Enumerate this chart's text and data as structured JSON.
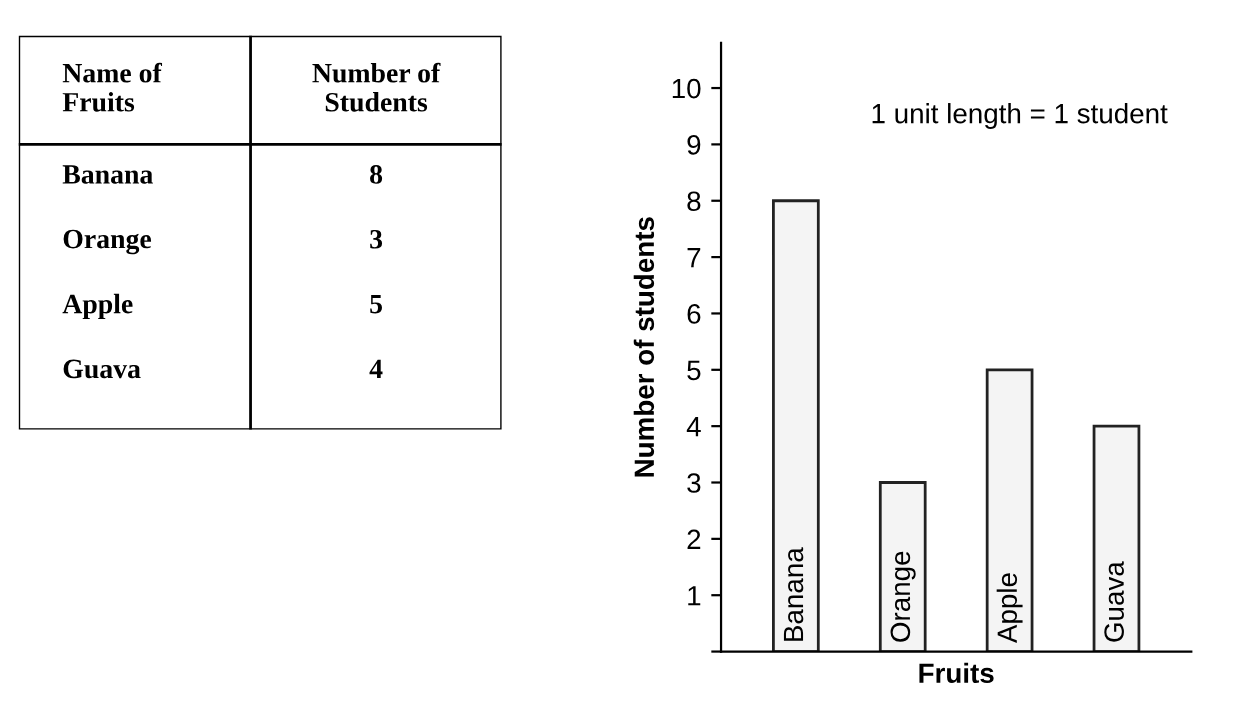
{
  "chart_data": [
    {
      "type": "other",
      "annotations": [
        "Name of\nFruits",
        "Number of\nStudents",
        "Banana",
        "8",
        "Orange",
        "3",
        "Apple",
        "5",
        "Guava",
        "4"
      ]
    },
    {
      "type": "bar",
      "xlabel": "Fruits",
      "ylabel": "Number of students",
      "categories": [
        "Banana",
        "Orange",
        "Apple",
        "Guava"
      ],
      "values": [
        8,
        3,
        5,
        4
      ],
      "color": "#f4f4f4",
      "ylim": [
        0,
        10.8
      ],
      "yticks": [
        {
          "value": 0,
          "label": null
        },
        1,
        2,
        3,
        4,
        5,
        6,
        7,
        8,
        9,
        10
      ],
      "annotations": [
        "1 unit length = 1 student"
      ],
      "grid": false,
      "tick_labels": "y"
    }
  ]
}
